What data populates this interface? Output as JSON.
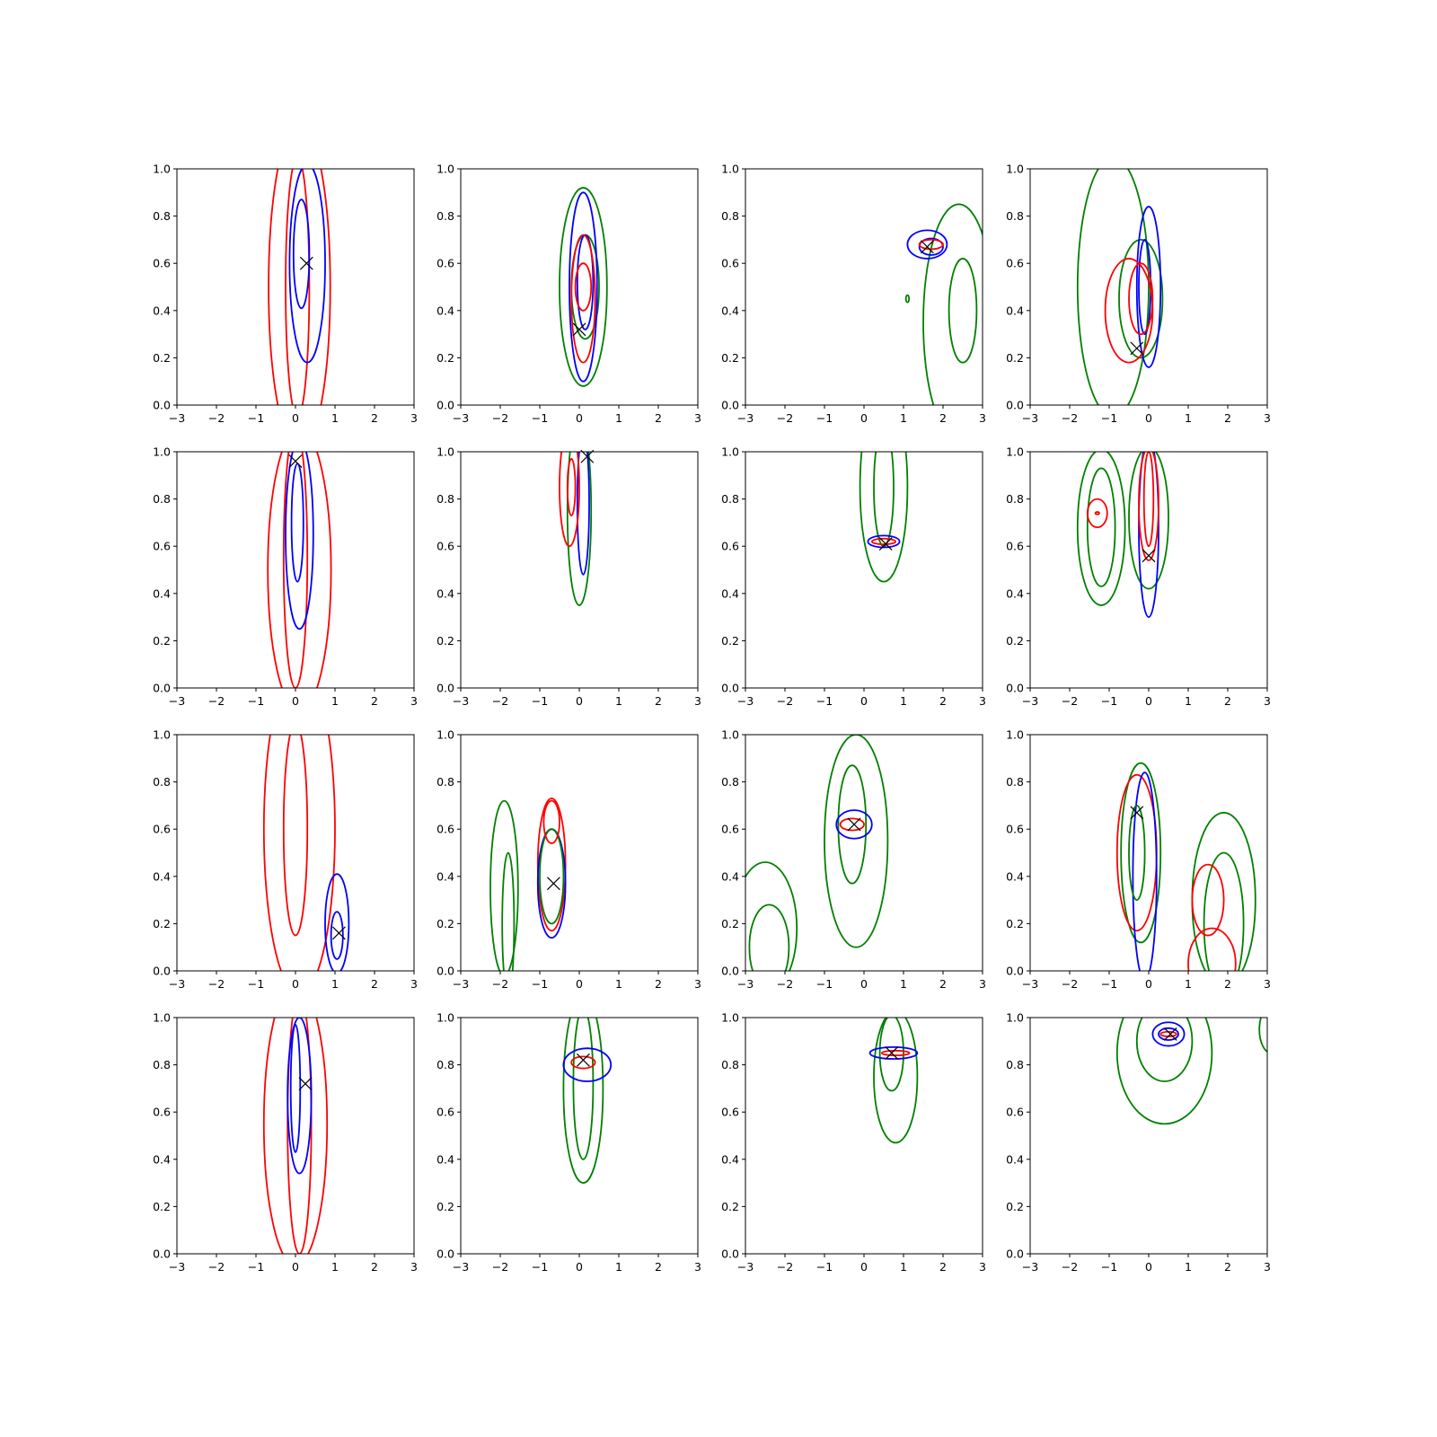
{
  "chart_data": {
    "type": "contour",
    "layout": "4x4 grid",
    "xlim": [
      -3,
      3
    ],
    "ylim": [
      0,
      1
    ],
    "x_ticks": [
      -3,
      -2,
      -1,
      0,
      1,
      2,
      3
    ],
    "x_tick_labels": [
      "−3",
      "−2",
      "−1",
      "0",
      "1",
      "2",
      "3"
    ],
    "y_ticks": [
      0,
      0.2,
      0.4,
      0.6,
      0.8,
      1.0
    ],
    "y_tick_labels": [
      "0.0",
      "0.2",
      "0.4",
      "0.6",
      "0.8",
      "1.0"
    ],
    "colors": {
      "red": "#ff0000",
      "blue": "#0000ff",
      "green": "#008000",
      "marker": "#000000"
    },
    "contour_format": "[color, center_x, center_y, radius_x, radius_y] in data units (approximate level sets)",
    "panels": [
      {
        "marker": [
          0.28,
          0.6
        ],
        "contours": [
          [
            "red",
            0.1,
            0.5,
            0.78,
            0.7
          ],
          [
            "red",
            0.05,
            0.5,
            0.3,
            0.55
          ],
          [
            "blue",
            0.3,
            0.6,
            0.45,
            0.42
          ],
          [
            "blue",
            0.15,
            0.64,
            0.2,
            0.23
          ]
        ]
      },
      {
        "marker": [
          0.0,
          0.32
        ],
        "contours": [
          [
            "green",
            0.1,
            0.5,
            0.6,
            0.42
          ],
          [
            "green",
            0.15,
            0.5,
            0.35,
            0.22
          ],
          [
            "blue",
            0.1,
            0.5,
            0.35,
            0.4
          ],
          [
            "blue",
            0.15,
            0.52,
            0.2,
            0.2
          ],
          [
            "red",
            0.1,
            0.45,
            0.3,
            0.27
          ],
          [
            "red",
            0.1,
            0.5,
            0.2,
            0.1
          ]
        ]
      },
      {
        "marker": [
          1.6,
          0.67
        ],
        "contours": [
          [
            "green",
            2.4,
            0.35,
            0.9,
            0.5
          ],
          [
            "green",
            2.5,
            0.4,
            0.35,
            0.22
          ],
          [
            "green",
            1.1,
            0.45,
            0.04,
            0.015
          ],
          [
            "blue",
            1.6,
            0.68,
            0.5,
            0.06
          ],
          [
            "blue",
            1.7,
            0.67,
            0.3,
            0.035
          ],
          [
            "red",
            1.7,
            0.68,
            0.3,
            0.02
          ]
        ]
      },
      {
        "marker": [
          -0.3,
          0.24
        ],
        "contours": [
          [
            "green",
            -0.9,
            0.5,
            0.9,
            0.55
          ],
          [
            "green",
            -0.2,
            0.45,
            0.55,
            0.25
          ],
          [
            "blue",
            0.0,
            0.5,
            0.3,
            0.34
          ],
          [
            "blue",
            -0.1,
            0.5,
            0.15,
            0.2
          ],
          [
            "red",
            -0.5,
            0.4,
            0.6,
            0.22
          ],
          [
            "red",
            -0.2,
            0.45,
            0.3,
            0.15
          ]
        ]
      },
      {
        "marker": [
          0.0,
          0.96
        ],
        "contours": [
          [
            "red",
            0.1,
            0.5,
            0.8,
            0.6
          ],
          [
            "red",
            0.0,
            0.55,
            0.3,
            0.55
          ],
          [
            "blue",
            0.1,
            0.65,
            0.35,
            0.4
          ],
          [
            "blue",
            0.05,
            0.7,
            0.15,
            0.25
          ]
        ]
      },
      {
        "marker": [
          0.2,
          0.98
        ],
        "contours": [
          [
            "green",
            0.0,
            0.75,
            0.3,
            0.4
          ],
          [
            "blue",
            0.1,
            0.78,
            0.15,
            0.3
          ],
          [
            "red",
            -0.25,
            0.85,
            0.25,
            0.25
          ],
          [
            "red",
            -0.2,
            0.85,
            0.1,
            0.12
          ]
        ]
      },
      {
        "marker": [
          0.55,
          0.61
        ],
        "contours": [
          [
            "green",
            0.5,
            0.85,
            0.6,
            0.4
          ],
          [
            "green",
            0.5,
            0.85,
            0.25,
            0.25
          ],
          [
            "blue",
            0.5,
            0.62,
            0.4,
            0.025
          ],
          [
            "red",
            0.5,
            0.62,
            0.3,
            0.012
          ]
        ]
      },
      {
        "marker": [
          0.0,
          0.56
        ],
        "contours": [
          [
            "green",
            -1.2,
            0.68,
            0.6,
            0.33
          ],
          [
            "green",
            -1.2,
            0.68,
            0.35,
            0.25
          ],
          [
            "red",
            -1.3,
            0.74,
            0.25,
            0.06
          ],
          [
            "red",
            -1.3,
            0.74,
            0.05,
            0.005
          ],
          [
            "green",
            0.0,
            0.72,
            0.5,
            0.3
          ],
          [
            "blue",
            0.0,
            0.68,
            0.25,
            0.38
          ],
          [
            "red",
            0.0,
            0.78,
            0.25,
            0.24
          ],
          [
            "red",
            0.0,
            0.8,
            0.12,
            0.2
          ]
        ]
      },
      {
        "marker": [
          1.1,
          0.16
        ],
        "contours": [
          [
            "red",
            0.1,
            0.6,
            0.9,
            0.7
          ],
          [
            "red",
            0.0,
            0.6,
            0.3,
            0.45
          ],
          [
            "blue",
            1.05,
            0.2,
            0.3,
            0.21
          ],
          [
            "blue",
            1.05,
            0.15,
            0.15,
            0.1
          ]
        ]
      },
      {
        "marker": [
          -0.65,
          0.37
        ],
        "contours": [
          [
            "green",
            -1.9,
            0.35,
            0.35,
            0.37
          ],
          [
            "green",
            -1.8,
            0.2,
            0.15,
            0.3
          ],
          [
            "red",
            -0.7,
            0.45,
            0.35,
            0.28
          ],
          [
            "blue",
            -0.7,
            0.37,
            0.35,
            0.23
          ],
          [
            "green",
            -0.7,
            0.4,
            0.3,
            0.2
          ],
          [
            "red",
            -0.7,
            0.63,
            0.2,
            0.09
          ]
        ]
      },
      {
        "marker": [
          -0.25,
          0.62
        ],
        "contours": [
          [
            "green",
            -0.2,
            0.55,
            0.8,
            0.45
          ],
          [
            "green",
            -0.3,
            0.62,
            0.35,
            0.25
          ],
          [
            "blue",
            -0.25,
            0.62,
            0.45,
            0.06
          ],
          [
            "red",
            -0.3,
            0.62,
            0.3,
            0.025
          ],
          [
            "green",
            -2.5,
            0.18,
            0.8,
            0.28
          ],
          [
            "green",
            -2.4,
            0.1,
            0.5,
            0.18
          ]
        ]
      },
      {
        "marker": [
          -0.3,
          0.67
        ],
        "contours": [
          [
            "green",
            -0.2,
            0.5,
            0.5,
            0.38
          ],
          [
            "red",
            -0.3,
            0.5,
            0.5,
            0.33
          ],
          [
            "blue",
            -0.1,
            0.4,
            0.3,
            0.44
          ],
          [
            "green",
            -0.3,
            0.5,
            0.2,
            0.2
          ],
          [
            "green",
            1.9,
            0.3,
            0.8,
            0.37
          ],
          [
            "green",
            1.9,
            0.2,
            0.5,
            0.3
          ],
          [
            "red",
            1.5,
            0.3,
            0.4,
            0.15
          ],
          [
            "red",
            1.6,
            0.03,
            0.6,
            0.15
          ]
        ]
      },
      {
        "marker": [
          0.25,
          0.72
        ],
        "contours": [
          [
            "red",
            0.0,
            0.55,
            0.8,
            0.6
          ],
          [
            "red",
            0.1,
            0.55,
            0.3,
            0.55
          ],
          [
            "blue",
            0.1,
            0.67,
            0.3,
            0.33
          ],
          [
            "blue",
            0.0,
            0.7,
            0.12,
            0.27
          ]
        ]
      },
      {
        "marker": [
          0.1,
          0.82
        ],
        "contours": [
          [
            "green",
            0.1,
            0.7,
            0.5,
            0.4
          ],
          [
            "green",
            0.1,
            0.72,
            0.25,
            0.32
          ],
          [
            "blue",
            0.2,
            0.8,
            0.6,
            0.07
          ],
          [
            "red",
            0.1,
            0.81,
            0.3,
            0.025
          ]
        ]
      },
      {
        "marker": [
          0.7,
          0.85
        ],
        "contours": [
          [
            "green",
            0.8,
            0.75,
            0.55,
            0.28
          ],
          [
            "green",
            0.7,
            0.85,
            0.3,
            0.16
          ],
          [
            "blue",
            0.75,
            0.85,
            0.6,
            0.025
          ],
          [
            "red",
            0.8,
            0.85,
            0.35,
            0.01
          ]
        ]
      },
      {
        "marker": [
          0.55,
          0.93
        ],
        "contours": [
          [
            "green",
            0.4,
            0.85,
            1.2,
            0.3
          ],
          [
            "green",
            0.4,
            0.9,
            0.7,
            0.17
          ],
          [
            "blue",
            0.5,
            0.93,
            0.4,
            0.05
          ],
          [
            "blue",
            0.5,
            0.93,
            0.25,
            0.025
          ],
          [
            "red",
            0.5,
            0.93,
            0.2,
            0.01
          ],
          [
            "green",
            3.1,
            0.95,
            0.3,
            0.1
          ]
        ]
      }
    ]
  }
}
